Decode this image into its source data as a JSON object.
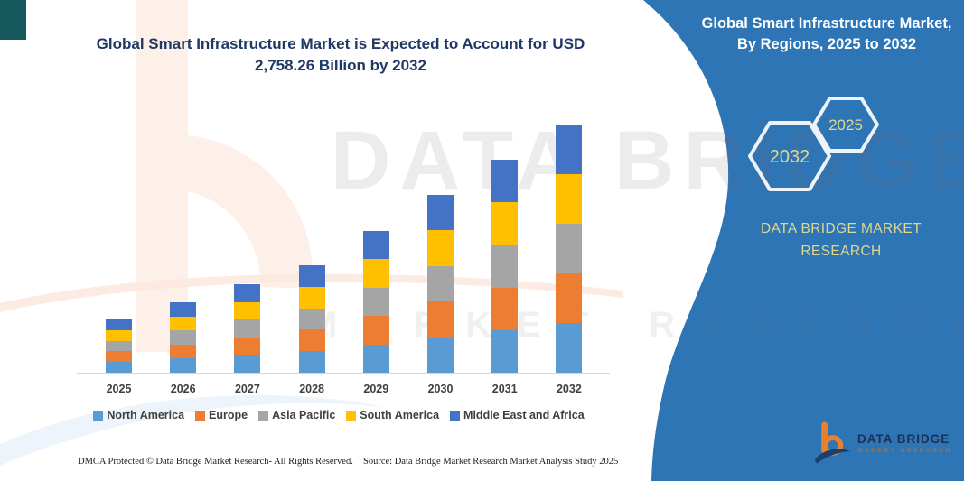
{
  "left": {
    "title": "Global Smart Infrastructure Market is Expected to Account for USD 2,758.26 Billion by 2032"
  },
  "panel": {
    "title": "Global Smart Infrastructure Market, By Regions, 2025 to 2032",
    "hexagon_large_label": "2032",
    "hexagon_small_label": "2025",
    "brand_text": "DATA BRIDGE MARKET RESEARCH",
    "logo_name": "DATA BRIDGE",
    "logo_subtitle": "MARKET RESEARCH",
    "background_color": "#2e75b6",
    "accent_text_color": "#dfd88e"
  },
  "watermark": {
    "row1": "DATA BRIDGE",
    "row2": "MARKET RESEARCH"
  },
  "chart_data": {
    "type": "bar",
    "stacked": true,
    "title": "Global Smart Infrastructure Market, By Regions, 2025 to 2032",
    "unit": "USD Billion",
    "categories": [
      "2025",
      "2026",
      "2027",
      "2028",
      "2029",
      "2030",
      "2031",
      "2032"
    ],
    "series": [
      {
        "name": "North America",
        "values": [
          118.4,
          156.4,
          196.6,
          238.6,
          315.0,
          395.2,
          473.4,
          551.7
        ]
      },
      {
        "name": "Europe",
        "values": [
          118.4,
          156.4,
          196.6,
          238.6,
          315.0,
          395.2,
          473.4,
          551.7
        ]
      },
      {
        "name": "Asia Pacific",
        "values": [
          118.4,
          156.4,
          196.6,
          238.6,
          315.0,
          395.2,
          473.4,
          551.7
        ]
      },
      {
        "name": "South America",
        "values": [
          118.4,
          156.4,
          196.6,
          238.6,
          315.0,
          395.2,
          473.4,
          551.7
        ]
      },
      {
        "name": "Middle East and Africa",
        "values": [
          118.4,
          156.4,
          196.6,
          238.6,
          315.0,
          395.2,
          473.4,
          551.7
        ]
      }
    ],
    "totals": [
      592.0,
      782.0,
      983.0,
      1193.0,
      1575.0,
      1976.0,
      2367.0,
      2758.26
    ],
    "colors": {
      "North America": "#5b9bd5",
      "Europe": "#ed7d31",
      "Asia Pacific": "#a5a5a5",
      "South America": "#ffc000",
      "Middle East and Africa": "#4472c4"
    },
    "ylim": [
      0,
      2900
    ],
    "gridlines": false,
    "legend_position": "bottom",
    "xlabel": "",
    "ylabel": ""
  },
  "footer": {
    "dmca": "DMCA Protected © Data Bridge Market Research-  All Rights Reserved.",
    "source": "Source: Data Bridge Market Research  Market Analysis Study 2025"
  }
}
